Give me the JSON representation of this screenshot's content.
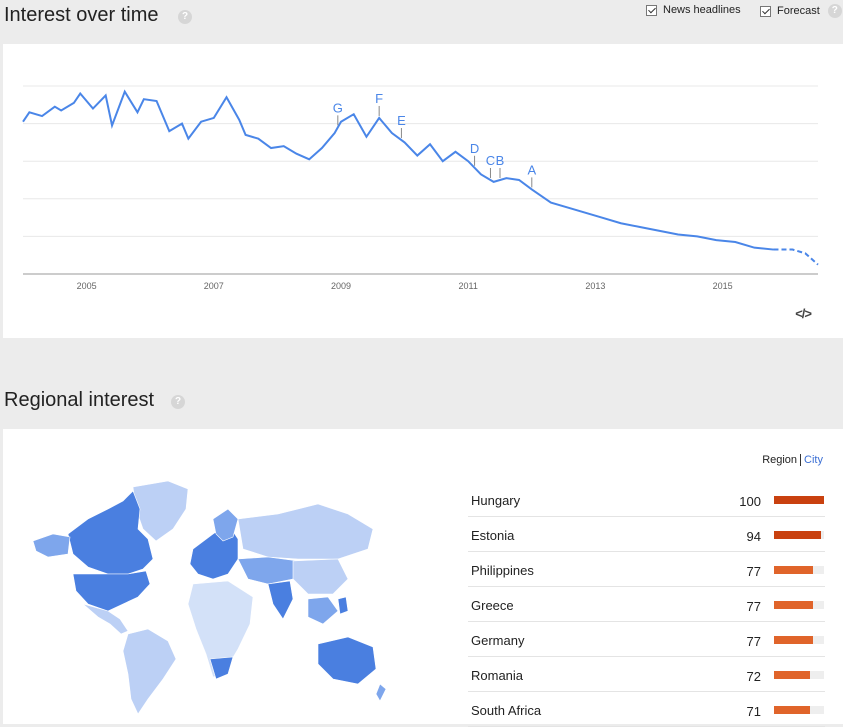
{
  "interest_over_time": {
    "title": "Interest over time",
    "help": "?",
    "options": [
      {
        "label": "News headlines",
        "checked": true
      },
      {
        "label": "Forecast",
        "checked": true
      }
    ],
    "embed_label": "</>",
    "chart_data": {
      "type": "line",
      "x_ticks": [
        "2005",
        "2007",
        "2009",
        "2011",
        "2013",
        "2015"
      ],
      "x_tick_years": [
        2005,
        2007,
        2009,
        2011,
        2013,
        2015
      ],
      "x_range": [
        2004.0,
        2016.5
      ],
      "ylim": [
        0,
        100
      ],
      "grid": true,
      "series": [
        {
          "x": [
            2004.0,
            2004.1,
            2004.3,
            2004.5,
            2004.6,
            2004.8,
            2004.9,
            2005.1,
            2005.3,
            2005.4,
            2005.6,
            2005.8,
            2005.9,
            2006.1,
            2006.3,
            2006.5,
            2006.6,
            2006.8,
            2007.0,
            2007.2,
            2007.4,
            2007.5,
            2007.7,
            2007.9,
            2008.1,
            2008.3,
            2008.5,
            2008.7,
            2008.9,
            2009.0,
            2009.2,
            2009.4,
            2009.6,
            2009.8,
            2010.0,
            2010.2,
            2010.4,
            2010.6,
            2010.8,
            2011.0,
            2011.2,
            2011.4,
            2011.6,
            2011.8,
            2012.0,
            2012.3,
            2012.6,
            2012.9,
            2013.1,
            2013.4,
            2013.7,
            2014.0,
            2014.3,
            2014.6,
            2014.9,
            2015.2,
            2015.5,
            2015.8
          ],
          "y": [
            81,
            86,
            84,
            89,
            87,
            91,
            96,
            88,
            95,
            79,
            97,
            86,
            93,
            92,
            76,
            80,
            72,
            81,
            83,
            94,
            82,
            74,
            72,
            67,
            68,
            64,
            61,
            67,
            75,
            81,
            85,
            73,
            83,
            75,
            70,
            63,
            69,
            60,
            65,
            60,
            53,
            49,
            51,
            50,
            45,
            38,
            35,
            32,
            30,
            27,
            25,
            23,
            21,
            20,
            18,
            17,
            14,
            13
          ],
          "line_style": "solid"
        },
        {
          "x": [
            2015.8,
            2016.1,
            2016.3,
            2016.5
          ],
          "y": [
            13,
            13,
            11,
            5
          ],
          "line_style": "dashed"
        }
      ],
      "annotations": [
        {
          "label": "G",
          "x": 2008.95
        },
        {
          "label": "F",
          "x": 2009.6
        },
        {
          "label": "E",
          "x": 2009.95
        },
        {
          "label": "D",
          "x": 2011.1
        },
        {
          "label": "C",
          "x": 2011.35
        },
        {
          "label": "B",
          "x": 2011.5
        },
        {
          "label": "A",
          "x": 2012.0
        }
      ]
    }
  },
  "regional_interest": {
    "title": "Regional interest",
    "help": "?",
    "toggle": {
      "region": "Region",
      "city": "City"
    },
    "rows": [
      {
        "name": "Hungary",
        "value": 100,
        "color": "#c9410f"
      },
      {
        "name": "Estonia",
        "value": 94,
        "color": "#c9410f"
      },
      {
        "name": "Philippines",
        "value": 77,
        "color": "#e0642a"
      },
      {
        "name": "Greece",
        "value": 77,
        "color": "#e0642a"
      },
      {
        "name": "Germany",
        "value": 77,
        "color": "#e0642a"
      },
      {
        "name": "Romania",
        "value": 72,
        "color": "#e0642a"
      },
      {
        "name": "South Africa",
        "value": 71,
        "color": "#e0642a"
      }
    ],
    "map_colors": {
      "high": "#4a7fe0",
      "mid": "#7ea6ec",
      "low": "#bcd0f5",
      "lowest": "#d3e1f8"
    }
  },
  "theme": {
    "line_color": "#4a86e8",
    "grid_color": "#e8e8e8"
  }
}
